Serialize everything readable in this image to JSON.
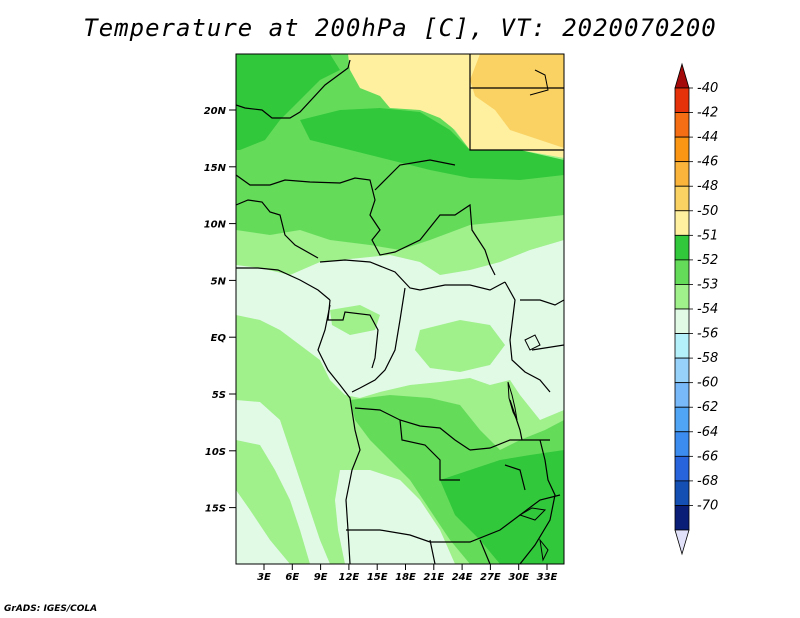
{
  "title": "Temperature at 200hPa [C], VT: 2020070200",
  "credit": "GrADS: IGES/COLA",
  "lat_ticks": [
    "20N",
    "15N",
    "10N",
    "5N",
    "EQ",
    "5S",
    "10S",
    "15S"
  ],
  "lon_ticks": [
    "3E",
    "6E",
    "9E",
    "12E",
    "15E",
    "18E",
    "21E",
    "24E",
    "27E",
    "30E",
    "33E"
  ],
  "colorbar": {
    "labels": [
      "-40",
      "-42",
      "-44",
      "-46",
      "-48",
      "-50",
      "-51",
      "-52",
      "-53",
      "-54",
      "-56",
      "-58",
      "-60",
      "-62",
      "-64",
      "-66",
      "-68",
      "-70"
    ],
    "colors": [
      "#a50a0a",
      "#e6320a",
      "#f56e14",
      "#fa9614",
      "#fab43c",
      "#fad264",
      "#fff0a0",
      "#32c83c",
      "#64dc5a",
      "#a0f08c",
      "#e1fae6",
      "#b4f0fa",
      "#96d2fa",
      "#78b9fa",
      "#50a5f5",
      "#3c8cf0",
      "#2864dc",
      "#1450b4",
      "#0a1e78",
      "#e1e1fa"
    ]
  },
  "map": {
    "lat_range": [
      -19,
      25
    ],
    "lon_range": [
      0,
      35
    ],
    "field_label": "Temperature at 200hPa",
    "units": "C"
  }
}
